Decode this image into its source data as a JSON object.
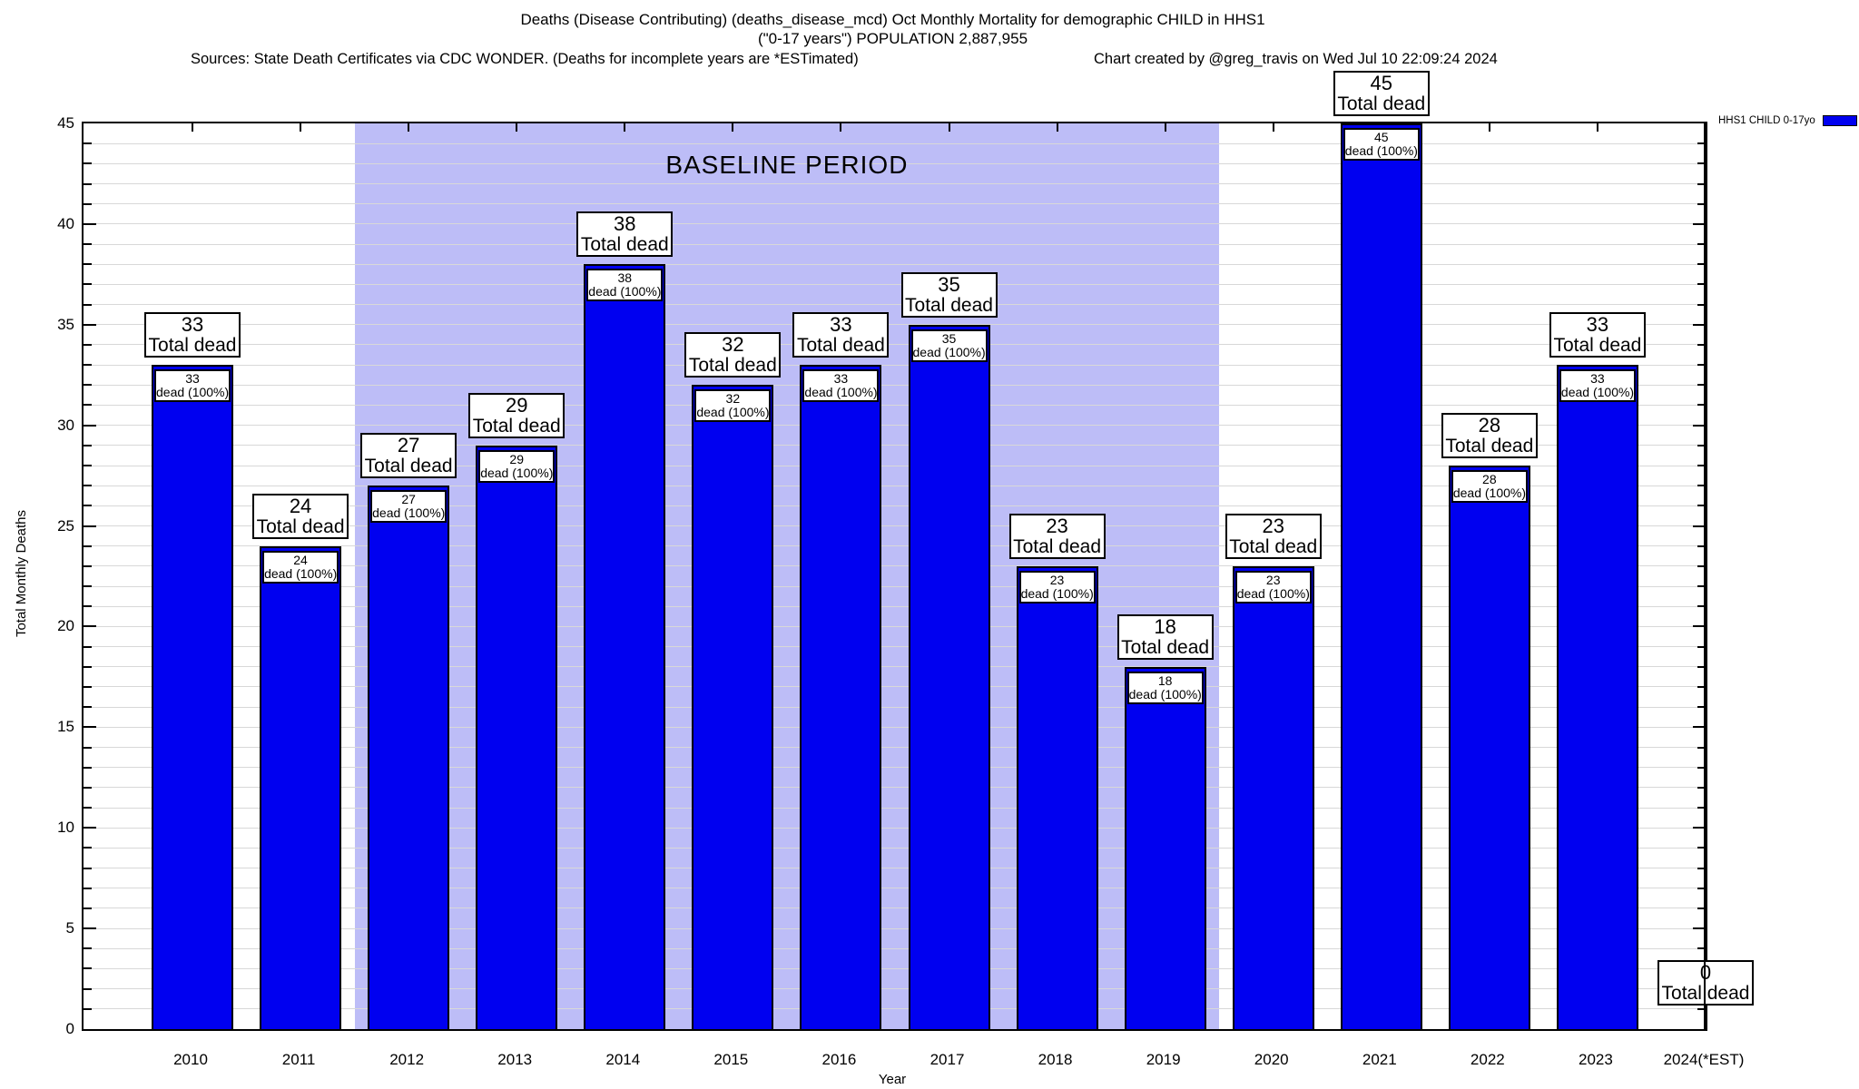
{
  "header": {
    "title_line1": "Deaths (Disease Contributing) (deaths_disease_mcd) Oct Monthly Mortality for demographic CHILD in HHS1",
    "title_line2": "(\"0-17 years\") POPULATION 2,887,955",
    "sources": "Sources: State Death Certificates via CDC WONDER. (Deaths for incomplete years are *ESTimated)",
    "credit": "Chart created by @greg_travis on Wed Jul 10 22:09:24 2024"
  },
  "legend": {
    "label": "HHS1 CHILD 0-17yo"
  },
  "axes": {
    "ylabel": "Total Monthly Deaths",
    "xlabel": "Year"
  },
  "colors": {
    "bar": "#0000f0",
    "baseline_fill": "#bdbdf7",
    "grid": "#d8d8d8",
    "axis": "#000000",
    "label_box_bg": "#ffffff"
  },
  "chart_data": {
    "type": "bar",
    "title": "Deaths (Disease Contributing) (deaths_disease_mcd) Oct Monthly Mortality for demographic CHILD in HHS1 (\"0-17 years\") POPULATION 2,887,955",
    "categories": [
      "2010",
      "2011",
      "2012",
      "2013",
      "2014",
      "2015",
      "2016",
      "2017",
      "2018",
      "2019",
      "2020",
      "2021",
      "2022",
      "2023",
      "2024(*EST)"
    ],
    "values": [
      33,
      24,
      27,
      29,
      38,
      32,
      33,
      35,
      23,
      18,
      23,
      45,
      28,
      33,
      0
    ],
    "series": [
      {
        "name": "HHS1 CHILD 0-17yo",
        "values": [
          33,
          24,
          27,
          29,
          38,
          32,
          33,
          35,
          23,
          18,
          23,
          45,
          28,
          33,
          0
        ]
      }
    ],
    "xlabel": "Year",
    "ylabel": "Total Monthly Deaths",
    "ylim": [
      0,
      45
    ],
    "ytick_interval": 5,
    "minor_ytick_interval": 1,
    "grid": true,
    "legend_position": "top-right-outside",
    "baseline": {
      "label": "BASELINE PERIOD",
      "from_category": "2012",
      "to_category": "2019"
    },
    "bar_top_label_suffix": "Total dead",
    "bar_inner_label_suffix": "dead (100%)"
  }
}
